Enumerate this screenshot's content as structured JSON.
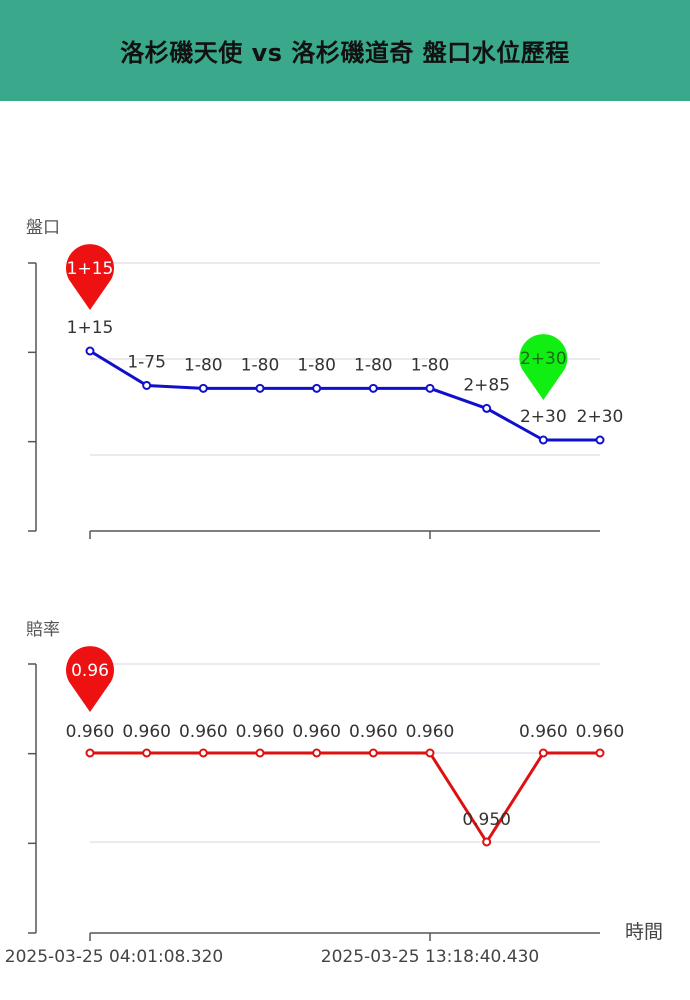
{
  "header": {
    "title": "洛杉磯天使 vs 洛杉磯道奇 盤口水位歷程"
  },
  "x_axis": {
    "label": "時間",
    "tick_labels": [
      "2025-03-25 04:01:08.320",
      "2025-03-25 13:18:40.430"
    ]
  },
  "chart_data": [
    {
      "type": "line",
      "ylabel": "盤口",
      "color": "#1010cc",
      "point_count": 10,
      "point_labels": [
        "1+15",
        "1-75",
        "1-80",
        "1-80",
        "1-80",
        "1-80",
        "1-80",
        "2+85",
        "2+30",
        "2+30"
      ],
      "values": [
        1.15,
        1.75,
        1.8,
        1.8,
        1.8,
        1.8,
        1.8,
        2.15,
        2.7,
        2.7
      ],
      "ylim": [
        0.0,
        3.0
      ],
      "max_marker": {
        "index": 0,
        "label": "1+15",
        "color": "#ee1111"
      },
      "min_marker": {
        "index": 8,
        "label": "2+30",
        "color": "#11ee11"
      }
    },
    {
      "type": "line",
      "ylabel": "賠率",
      "color": "#dd1111",
      "point_count": 10,
      "point_labels": [
        "0.960",
        "0.960",
        "0.960",
        "0.960",
        "0.960",
        "0.960",
        "0.960",
        "0.950",
        "0.960",
        "0.960"
      ],
      "values": [
        0.96,
        0.96,
        0.96,
        0.96,
        0.96,
        0.96,
        0.96,
        0.95,
        0.96,
        0.96
      ],
      "ylim": [
        0.94,
        0.97
      ],
      "max_marker": {
        "index": 0,
        "label": "0.96",
        "color": "#ee1111"
      }
    }
  ]
}
